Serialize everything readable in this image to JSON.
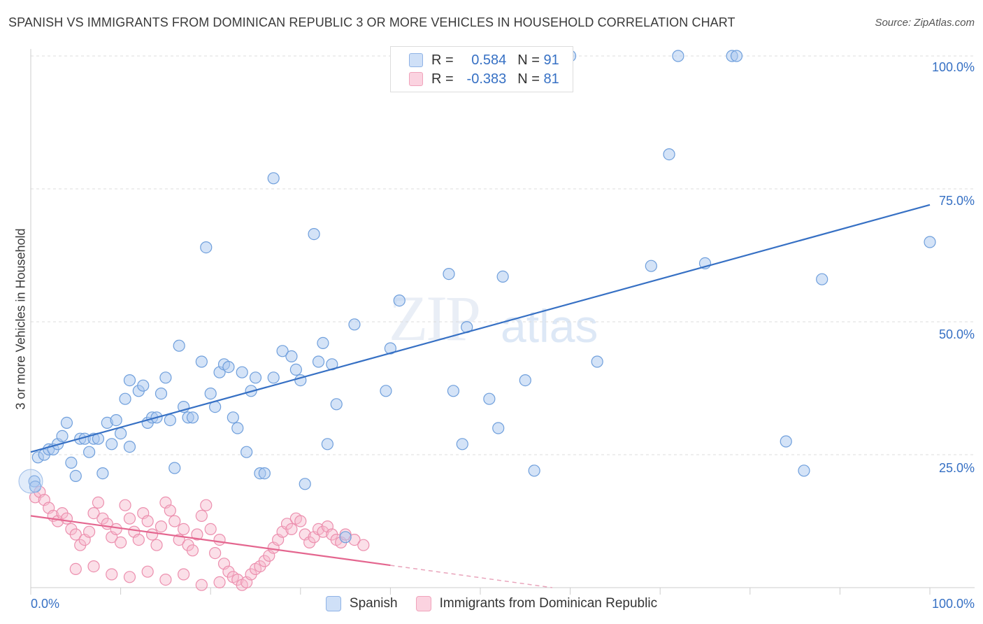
{
  "title": "SPANISH VS IMMIGRANTS FROM DOMINICAN REPUBLIC 3 OR MORE VEHICLES IN HOUSEHOLD CORRELATION CHART",
  "source": "Source: ZipAtlas.com",
  "watermark": {
    "zip": "ZIP",
    "atlas": "atlas"
  },
  "legend": {
    "rows": [
      {
        "r_label": "R =",
        "r_value": "0.584",
        "n_label": "N =",
        "n_value": "91",
        "color": "#a9c8f0"
      },
      {
        "r_label": "R =",
        "r_value": "-0.383",
        "n_label": "N =",
        "n_value": "81",
        "color": "#f7b8cb"
      }
    ]
  },
  "bottom_legend": {
    "spanish": "Spanish",
    "dominican": "Immigrants from Dominican Republic"
  },
  "axis": {
    "ylabel": "3 or more Vehicles in Household",
    "y_ticks": [
      "100.0%",
      "75.0%",
      "50.0%",
      "25.0%"
    ],
    "x_left": "0.0%",
    "x_right": "100.0%"
  },
  "colors": {
    "blue": "#3670c4",
    "blue_fill": "#a9c8f0",
    "pink": "#e4668f",
    "pink_fill": "#f7b8cb",
    "grid": "#dcdcdc"
  },
  "chart_data": {
    "type": "scatter",
    "xlim": [
      0,
      100
    ],
    "ylim": [
      0,
      100
    ],
    "grid": true,
    "series": [
      {
        "name": "Spanish",
        "color": "#3670c4",
        "trend": {
          "x": [
            0,
            100
          ],
          "y": [
            25.5,
            72
          ]
        },
        "points": [
          [
            0.8,
            24.5
          ],
          [
            1.5,
            25
          ],
          [
            2,
            26
          ],
          [
            2.5,
            26
          ],
          [
            3,
            27
          ],
          [
            3.5,
            28.5
          ],
          [
            4,
            31
          ],
          [
            4.5,
            23.5
          ],
          [
            5,
            21
          ],
          [
            5.5,
            28
          ],
          [
            6,
            28
          ],
          [
            6.5,
            25.5
          ],
          [
            7,
            28
          ],
          [
            7.5,
            28
          ],
          [
            8,
            21.5
          ],
          [
            8.5,
            31
          ],
          [
            9,
            27
          ],
          [
            9.5,
            31.5
          ],
          [
            10,
            29
          ],
          [
            10.5,
            35.5
          ],
          [
            11,
            39
          ],
          [
            11,
            26.5
          ],
          [
            12,
            37
          ],
          [
            12.5,
            38
          ],
          [
            13,
            31
          ],
          [
            13.5,
            32
          ],
          [
            14,
            32
          ],
          [
            14.5,
            36.5
          ],
          [
            15,
            39.5
          ],
          [
            15.5,
            31.5
          ],
          [
            16,
            22.5
          ],
          [
            16.5,
            45.5
          ],
          [
            17,
            34
          ],
          [
            17.5,
            32
          ],
          [
            18,
            32
          ],
          [
            19,
            42.5
          ],
          [
            19.5,
            64
          ],
          [
            20,
            36.5
          ],
          [
            20.5,
            34
          ],
          [
            21,
            40.5
          ],
          [
            21.5,
            42
          ],
          [
            22,
            41.5
          ],
          [
            22.5,
            32
          ],
          [
            23,
            30
          ],
          [
            23.5,
            40.5
          ],
          [
            24,
            25.5
          ],
          [
            24.5,
            37
          ],
          [
            25,
            39.5
          ],
          [
            25.5,
            21.5
          ],
          [
            26,
            21.5
          ],
          [
            27,
            77
          ],
          [
            27,
            39.5
          ],
          [
            28,
            44.5
          ],
          [
            29,
            43.5
          ],
          [
            29.5,
            41
          ],
          [
            30,
            39
          ],
          [
            30.5,
            19.5
          ],
          [
            31.5,
            66.5
          ],
          [
            32,
            42.5
          ],
          [
            32.5,
            46
          ],
          [
            33,
            27
          ],
          [
            33.5,
            42
          ],
          [
            34,
            34.5
          ],
          [
            35,
            9.5
          ],
          [
            36,
            49.5
          ],
          [
            39.5,
            37
          ],
          [
            40,
            45
          ],
          [
            41,
            54
          ],
          [
            46.5,
            59
          ],
          [
            47,
            37
          ],
          [
            48,
            27
          ],
          [
            48.5,
            49
          ],
          [
            51,
            35.5
          ],
          [
            52,
            30
          ],
          [
            52.5,
            58.5
          ],
          [
            55,
            39
          ],
          [
            56,
            22
          ],
          [
            60,
            100
          ],
          [
            63,
            42.5
          ],
          [
            69,
            60.5
          ],
          [
            71,
            81.5
          ],
          [
            72,
            100
          ],
          [
            75,
            61
          ],
          [
            78,
            100
          ],
          [
            78.5,
            100
          ],
          [
            84,
            27.5
          ],
          [
            86,
            22
          ],
          [
            88,
            58
          ],
          [
            100,
            65
          ],
          [
            0.4,
            20
          ],
          [
            0.5,
            19
          ]
        ]
      },
      {
        "name": "Immigrants from Dominican Republic",
        "color": "#e4668f",
        "trend": {
          "x": [
            0,
            40
          ],
          "y": [
            13.5,
            4.2
          ]
        },
        "trend_dashed": {
          "x": [
            40,
            100
          ],
          "y": [
            4.2,
            -9.8
          ]
        },
        "points": [
          [
            0.5,
            17
          ],
          [
            1,
            18
          ],
          [
            1.5,
            16.5
          ],
          [
            2,
            15
          ],
          [
            2.5,
            13.5
          ],
          [
            3,
            12.5
          ],
          [
            3.5,
            14
          ],
          [
            4,
            13
          ],
          [
            4.5,
            11
          ],
          [
            5,
            10
          ],
          [
            5.5,
            8
          ],
          [
            6,
            9
          ],
          [
            6.5,
            10.5
          ],
          [
            7,
            14
          ],
          [
            7.5,
            16
          ],
          [
            8,
            13
          ],
          [
            8.5,
            12
          ],
          [
            9,
            9.5
          ],
          [
            9.5,
            11
          ],
          [
            10,
            8.5
          ],
          [
            10.5,
            15.5
          ],
          [
            11,
            13
          ],
          [
            11.5,
            10.5
          ],
          [
            12,
            9
          ],
          [
            12.5,
            14
          ],
          [
            13,
            12.5
          ],
          [
            13.5,
            10
          ],
          [
            14,
            8
          ],
          [
            14.5,
            11.5
          ],
          [
            15,
            16
          ],
          [
            15.5,
            14.5
          ],
          [
            16,
            12.5
          ],
          [
            16.5,
            9
          ],
          [
            17,
            11
          ],
          [
            17.5,
            8
          ],
          [
            18,
            7
          ],
          [
            18.5,
            10
          ],
          [
            19,
            13.5
          ],
          [
            19.5,
            15.5
          ],
          [
            20,
            11
          ],
          [
            20.5,
            6.5
          ],
          [
            21,
            9
          ],
          [
            21.5,
            4.5
          ],
          [
            22,
            3
          ],
          [
            22.5,
            2
          ],
          [
            23,
            1.5
          ],
          [
            23.5,
            0.5
          ],
          [
            24,
            1
          ],
          [
            24.5,
            2.5
          ],
          [
            25,
            3.5
          ],
          [
            25.5,
            4
          ],
          [
            26,
            5
          ],
          [
            26.5,
            6
          ],
          [
            27,
            7.5
          ],
          [
            27.5,
            9
          ],
          [
            28,
            10.5
          ],
          [
            28.5,
            12
          ],
          [
            29,
            11
          ],
          [
            29.5,
            13
          ],
          [
            30,
            12.5
          ],
          [
            30.5,
            10
          ],
          [
            31,
            8.5
          ],
          [
            31.5,
            9.5
          ],
          [
            32,
            11
          ],
          [
            32.5,
            10.5
          ],
          [
            33,
            11.5
          ],
          [
            33.5,
            10
          ],
          [
            34,
            9
          ],
          [
            34.5,
            8.5
          ],
          [
            35,
            10
          ],
          [
            36,
            9
          ],
          [
            37,
            8
          ],
          [
            5,
            3.5
          ],
          [
            7,
            4
          ],
          [
            9,
            2.5
          ],
          [
            11,
            2
          ],
          [
            13,
            3
          ],
          [
            15,
            1.5
          ],
          [
            17,
            2.5
          ],
          [
            19,
            0.5
          ],
          [
            21,
            1
          ]
        ]
      }
    ]
  }
}
